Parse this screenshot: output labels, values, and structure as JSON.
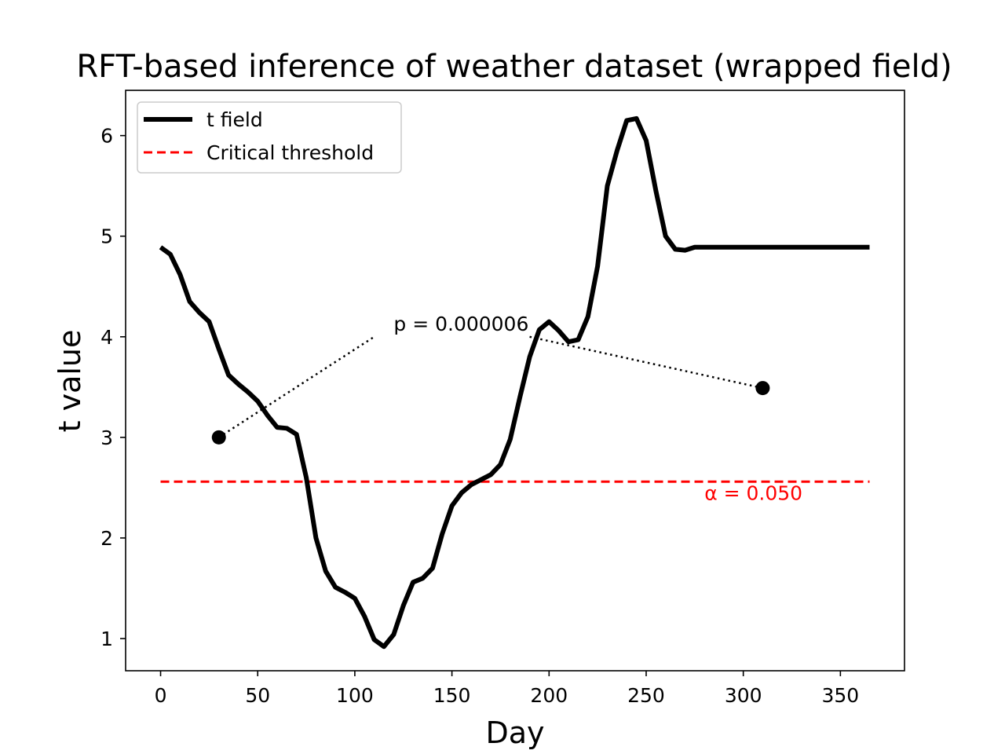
{
  "chart_data": {
    "type": "line",
    "title": "RFT-based inference of weather dataset (wrapped field)",
    "xlabel": "Day",
    "ylabel": "t value",
    "xlim": [
      -18,
      383
    ],
    "ylim": [
      0.68,
      6.45
    ],
    "xticks": [
      0,
      50,
      100,
      150,
      200,
      250,
      300,
      350
    ],
    "yticks": [
      1,
      2,
      3,
      4,
      5,
      6
    ],
    "grid": false,
    "legend_position": "top-left",
    "series": [
      {
        "name": "t field",
        "color": "#000000",
        "style": "solid",
        "x": [
          0,
          5,
          10,
          15,
          20,
          25,
          30,
          35,
          40,
          45,
          50,
          55,
          60,
          65,
          70,
          75,
          80,
          85,
          90,
          95,
          100,
          105,
          110,
          115,
          120,
          125,
          130,
          135,
          140,
          145,
          150,
          155,
          160,
          165,
          170,
          175,
          180,
          185,
          190,
          195,
          200,
          205,
          210,
          215,
          220,
          225,
          230,
          235,
          240,
          245,
          250,
          255,
          260,
          265,
          270,
          275,
          280,
          285,
          290,
          295,
          300,
          305,
          310,
          315,
          320,
          325,
          330,
          335,
          340,
          345,
          350,
          355,
          360,
          365
        ],
        "y": [
          4.89,
          4.82,
          4.62,
          4.35,
          4.24,
          4.15,
          3.88,
          3.62,
          3.53,
          3.45,
          3.36,
          3.22,
          3.1,
          3.09,
          3.03,
          2.6,
          2.0,
          1.67,
          1.51,
          1.46,
          1.4,
          1.22,
          0.99,
          0.92,
          1.04,
          1.33,
          1.56,
          1.6,
          1.7,
          2.04,
          2.32,
          2.45,
          2.53,
          2.58,
          2.63,
          2.73,
          2.98,
          3.4,
          3.8,
          4.07,
          4.15,
          4.06,
          3.95,
          3.97,
          4.2,
          4.7,
          5.5,
          5.85,
          6.15,
          6.17,
          5.95,
          5.45,
          5.0,
          4.87,
          4.86,
          4.89,
          4.89,
          4.89,
          4.89,
          4.89,
          4.89,
          4.89,
          4.89,
          4.89,
          4.89,
          4.89,
          4.89,
          4.89,
          4.89,
          4.89,
          4.89,
          4.89,
          4.89,
          4.89
        ]
      },
      {
        "name": "Critical threshold",
        "color": "#ff0000",
        "style": "dashed",
        "x": [
          0,
          365
        ],
        "y": [
          2.56,
          2.56
        ]
      }
    ],
    "annotations": [
      {
        "text": "p = 0.000006",
        "text_x": 120,
        "text_y": 4.06,
        "points": [
          {
            "x": 30,
            "y": 3.0
          },
          {
            "x": 310,
            "y": 3.49
          }
        ],
        "line_end_left": {
          "x": 110,
          "y": 4.0
        },
        "line_end_right": {
          "x": 190,
          "y": 4.0
        }
      },
      {
        "text": "α = 0.050",
        "text_x": 280,
        "text_y": 2.38,
        "color": "#ff0000"
      }
    ]
  }
}
